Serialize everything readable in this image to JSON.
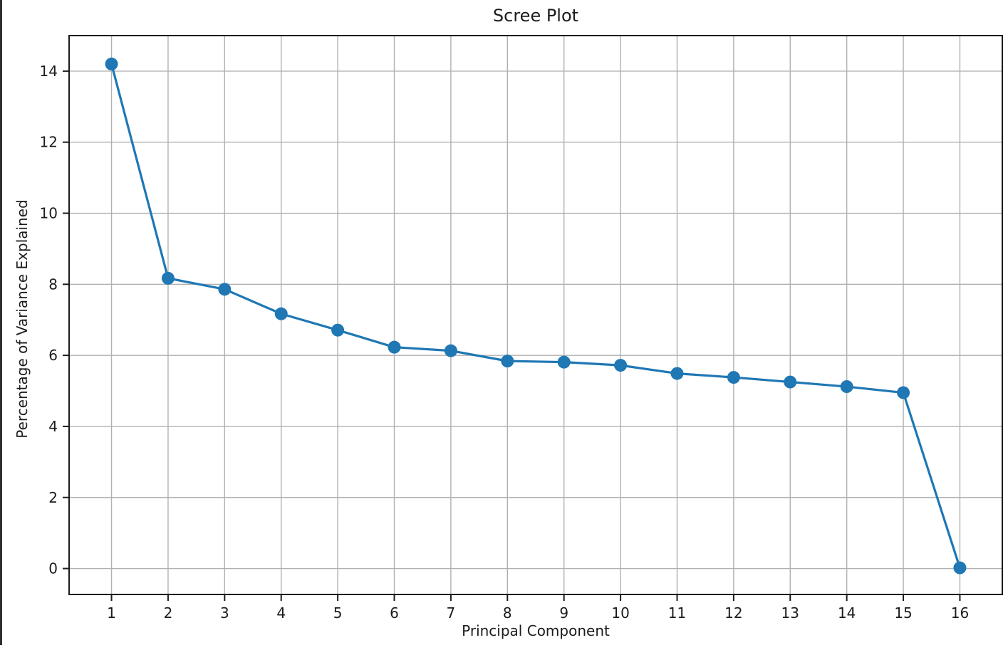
{
  "figure": {
    "background_color": "#ffffff",
    "left_border_color": "#2e2e2e"
  },
  "chart_data": {
    "type": "line",
    "title": "Scree Plot",
    "xlabel": "Principal Component",
    "ylabel": "Percentage of Variance Explained",
    "x": [
      1,
      2,
      3,
      4,
      5,
      6,
      7,
      8,
      9,
      10,
      11,
      12,
      13,
      14,
      15,
      16
    ],
    "values": [
      14.2,
      8.17,
      7.86,
      7.17,
      6.71,
      6.23,
      6.13,
      5.84,
      5.81,
      5.72,
      5.49,
      5.38,
      5.25,
      5.12,
      4.95,
      0.02
    ],
    "xticks": [
      1,
      2,
      3,
      4,
      5,
      6,
      7,
      8,
      9,
      10,
      11,
      12,
      13,
      14,
      15,
      16
    ],
    "yticks": [
      0,
      2,
      4,
      6,
      8,
      10,
      12,
      14
    ],
    "xlim": [
      0.25,
      16.75
    ],
    "ylim": [
      -0.73,
      15.0
    ],
    "grid": true,
    "legend": null,
    "marker": "o",
    "line_color": "#1f77b4",
    "marker_color": "#1f77b4",
    "grid_color": "#b0b0b0",
    "spine_color": "#1a1a1a",
    "tick_color": "#1c1c1c",
    "text_color": "#1c1c1c"
  }
}
